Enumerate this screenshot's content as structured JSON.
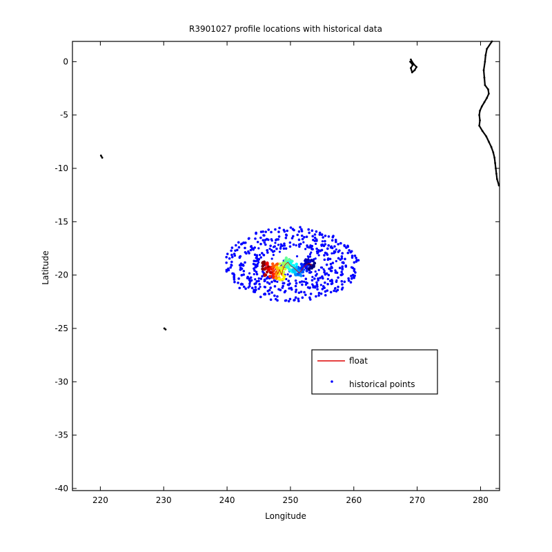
{
  "chart_data": {
    "type": "scatter",
    "title": "R3901027 profile locations with historical data",
    "xlabel": "Longitude",
    "ylabel": "Latitude",
    "xlim": [
      215.6,
      283.0
    ],
    "ylim": [
      -40.2,
      1.9
    ],
    "xticks": [
      220,
      230,
      240,
      250,
      260,
      270,
      280
    ],
    "yticks": [
      0,
      -5,
      -10,
      -15,
      -20,
      -25,
      -30,
      -35,
      -40
    ],
    "grid": false,
    "legend": {
      "position": "lower-right",
      "entries": [
        {
          "label": "float",
          "marker": "line",
          "color": "#dd0000"
        },
        {
          "label": "historical points",
          "marker": "dot",
          "color": "#0000ff"
        }
      ]
    },
    "series": [
      {
        "name": "historical points",
        "color": "#0000ff",
        "description_shape": "ring",
        "center": [
          250.3,
          -19.0
        ],
        "rings": [
          {
            "rx": 10.0,
            "ry": 3.2
          },
          {
            "rx": 8.0,
            "ry": 2.5
          },
          {
            "rx": 6.0,
            "ry": 1.8
          }
        ],
        "count_per_ring": [
          170,
          140,
          110
        ]
      },
      {
        "name": "float",
        "color_scale": "jet",
        "points": [
          [
            246.0,
            -19.1
          ],
          [
            246.4,
            -19.6
          ],
          [
            246.8,
            -19.2
          ],
          [
            247.2,
            -19.8
          ],
          [
            247.6,
            -19.4
          ],
          [
            248.0,
            -19.9
          ],
          [
            248.3,
            -19.5
          ],
          [
            248.6,
            -20.0
          ],
          [
            248.9,
            -19.3
          ],
          [
            249.2,
            -19.0
          ],
          [
            249.6,
            -18.8
          ],
          [
            250.0,
            -19.1
          ],
          [
            250.5,
            -19.3
          ],
          [
            251.0,
            -19.6
          ],
          [
            251.4,
            -19.8
          ],
          [
            251.8,
            -19.5
          ],
          [
            252.2,
            -19.2
          ],
          [
            252.6,
            -19.0
          ],
          [
            253.0,
            -18.9
          ],
          [
            253.4,
            -19.1
          ]
        ]
      }
    ],
    "coastlines": [
      {
        "name": "south-america-coast",
        "points": [
          [
            281.8,
            1.9
          ],
          [
            281.0,
            1.2
          ],
          [
            280.8,
            0.6
          ],
          [
            280.7,
            0.0
          ],
          [
            280.5,
            -0.8
          ],
          [
            280.6,
            -1.5
          ],
          [
            280.7,
            -2.2
          ],
          [
            281.2,
            -2.6
          ],
          [
            281.3,
            -3.0
          ],
          [
            281.0,
            -3.4
          ],
          [
            280.6,
            -3.8
          ],
          [
            280.2,
            -4.2
          ],
          [
            279.9,
            -4.6
          ],
          [
            279.8,
            -5.0
          ],
          [
            279.9,
            -5.5
          ],
          [
            279.8,
            -6.0
          ],
          [
            280.3,
            -6.5
          ],
          [
            280.9,
            -7.0
          ],
          [
            281.3,
            -7.5
          ],
          [
            281.7,
            -8.0
          ],
          [
            282.0,
            -8.5
          ],
          [
            282.2,
            -9.0
          ],
          [
            282.3,
            -9.5
          ],
          [
            282.4,
            -10.0
          ],
          [
            282.5,
            -10.5
          ],
          [
            282.6,
            -11.0
          ],
          [
            282.9,
            -11.6
          ]
        ]
      },
      {
        "name": "galapagos",
        "points": [
          [
            269.0,
            0.2
          ],
          [
            269.4,
            -0.2
          ],
          [
            269.9,
            -0.5
          ],
          [
            269.6,
            -0.8
          ],
          [
            269.2,
            -1.0
          ],
          [
            269.0,
            -0.6
          ],
          [
            269.3,
            -0.3
          ],
          [
            268.9,
            0.0
          ]
        ]
      },
      {
        "name": "island-1",
        "points": [
          [
            220.1,
            -8.8
          ],
          [
            220.3,
            -9.0
          ]
        ]
      },
      {
        "name": "island-2",
        "points": [
          [
            230.1,
            -25.0
          ],
          [
            230.3,
            -25.1
          ]
        ]
      }
    ]
  }
}
